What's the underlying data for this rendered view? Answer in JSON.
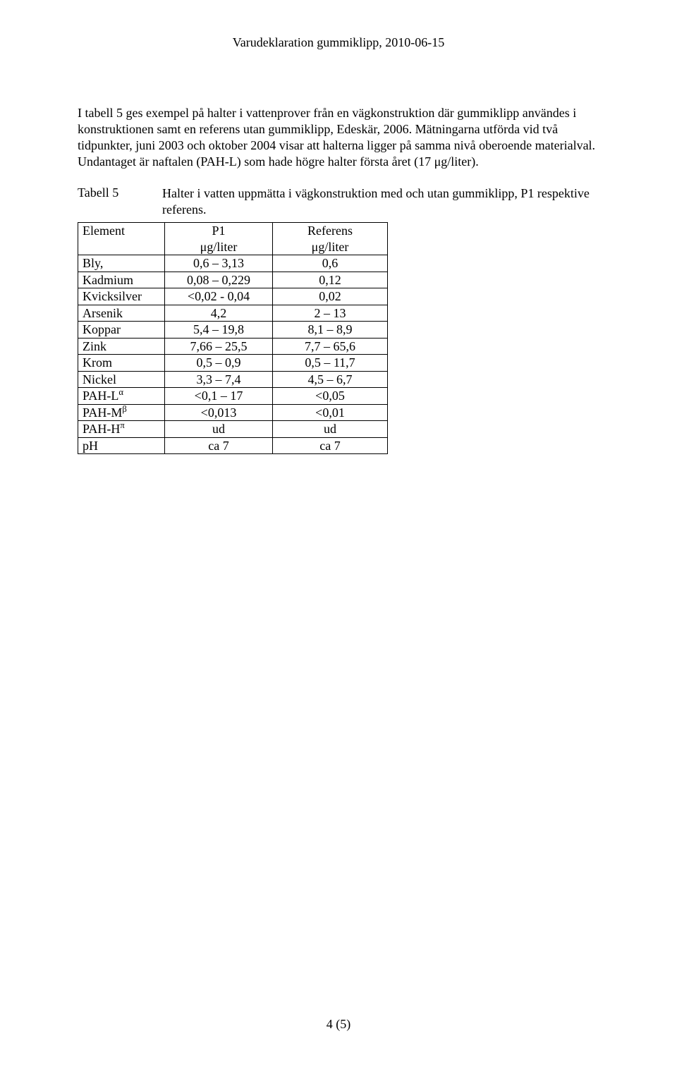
{
  "header": {
    "title": "Varudeklaration gummiklipp, 2010-06-15"
  },
  "body": {
    "paragraph1": "I tabell 5 ges exempel på halter i vattenprover från en vägkonstruktion där gummiklipp användes i konstruktionen samt en referens utan gummiklipp, Edeskär, 2006. Mätningarna utförda vid två tidpunkter, juni 2003 och oktober 2004 visar att halterna ligger på samma nivå oberoende materialval. Undantaget är naftalen (PAH-L) som hade högre halter första året (17 μg/liter)."
  },
  "table5": {
    "caption_label": "Tabell 5",
    "caption_text": "Halter i vatten uppmätta i vägkonstruktion med och utan gummiklipp, P1 respektive referens.",
    "header": {
      "element": "Element",
      "p1_line1": "P1",
      "p1_line2": "μg/liter",
      "ref_line1": "Referens",
      "ref_line2": "μg/liter"
    },
    "rows": [
      {
        "element": "Bly,",
        "p1": "0,6 – 3,13",
        "ref": "0,6"
      },
      {
        "element": "Kadmium",
        "p1": "0,08 – 0,229",
        "ref": "0,12"
      },
      {
        "element": "Kvicksilver",
        "p1": "<0,02 - 0,04",
        "ref": "0,02"
      },
      {
        "element": "Arsenik",
        "p1": "4,2",
        "ref": "2 – 13"
      },
      {
        "element": "Koppar",
        "p1": "5,4 – 19,8",
        "ref": "8,1 – 8,9"
      },
      {
        "element": "Zink",
        "p1": "7,66 – 25,5",
        "ref": "7,7 – 65,6"
      },
      {
        "element": "Krom",
        "p1": "0,5 – 0,9",
        "ref": "0,5 – 11,7"
      },
      {
        "element": "Nickel",
        "p1": "3,3 – 7,4",
        "ref": "4,5 – 6,7"
      },
      {
        "element_base": "PAH-L",
        "element_sup": "α",
        "p1": "<0,1 – 17",
        "ref": "<0,05"
      },
      {
        "element_base": "PAH-M",
        "element_sup": "β",
        "p1": "<0,013",
        "ref": "<0,01"
      },
      {
        "element_base": "PAH-H",
        "element_sup": "π",
        "p1": "ud",
        "ref": "ud"
      },
      {
        "element": "pH",
        "p1": "ca 7",
        "ref": "ca 7"
      }
    ]
  },
  "footer": {
    "page_number": "4 (5)"
  },
  "styles": {
    "font_family": "Times New Roman",
    "text_color": "#000000",
    "background_color": "#ffffff",
    "border_color": "#000000",
    "base_font_size_pt": 12
  }
}
